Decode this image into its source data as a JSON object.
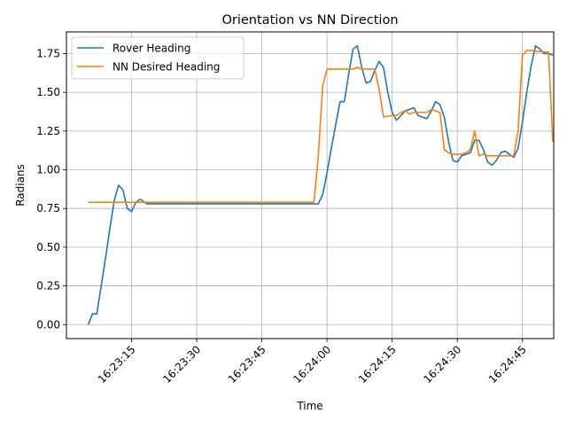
{
  "chart_data": {
    "type": "line",
    "title": "Orientation vs NN Direction",
    "xlabel": "Time",
    "ylabel": "Radians",
    "x_ticks": [
      "16:23:15",
      "16:23:30",
      "16:23:45",
      "16:24:00",
      "16:24:15",
      "16:24:30",
      "16:24:45"
    ],
    "y_ticks": [
      "0.00",
      "0.25",
      "0.50",
      "0.75",
      "1.00",
      "1.25",
      "1.50",
      "1.75"
    ],
    "xlim": [
      "16:23:00.0",
      "16:24:52.2"
    ],
    "ylim": [
      -0.09,
      1.89
    ],
    "grid": true,
    "legend_position": "upper-left",
    "series": [
      {
        "name": "Rover Heading",
        "color": "#1f77b4",
        "x": [
          "16:23:05.0",
          "16:23:06.0",
          "16:23:07.0",
          "16:23:08.0",
          "16:23:09.0",
          "16:23:10.0",
          "16:23:11.0",
          "16:23:12.0",
          "16:23:13.0",
          "16:23:14.0",
          "16:23:15.0",
          "16:23:16.0",
          "16:23:17.0",
          "16:23:18.5",
          "16:23:25.0",
          "16:23:40.0",
          "16:23:57.0",
          "16:23:58.0",
          "16:23:59.0",
          "16:24:00.0",
          "16:24:01.0",
          "16:24:02.0",
          "16:24:03.0",
          "16:24:04.0",
          "16:24:05.0",
          "16:24:06.0",
          "16:24:07.0",
          "16:24:08.0",
          "16:24:09.0",
          "16:24:10.0",
          "16:24:11.0",
          "16:24:12.0",
          "16:24:13.0",
          "16:24:14.0",
          "16:24:15.0",
          "16:24:16.0",
          "16:24:17.0",
          "16:24:18.0",
          "16:24:19.0",
          "16:24:20.0",
          "16:24:21.0",
          "16:24:22.0",
          "16:24:23.0",
          "16:24:24.0",
          "16:24:25.0",
          "16:24:26.0",
          "16:24:27.0",
          "16:24:28.0",
          "16:24:29.0",
          "16:24:30.0",
          "16:24:31.0",
          "16:24:32.0",
          "16:24:33.0",
          "16:24:34.0",
          "16:24:35.0",
          "16:24:36.0",
          "16:24:37.0",
          "16:24:38.0",
          "16:24:39.0",
          "16:24:40.0",
          "16:24:41.0",
          "16:24:42.0",
          "16:24:43.0",
          "16:24:44.0",
          "16:24:45.0",
          "16:24:46.0",
          "16:24:47.0",
          "16:24:48.0",
          "16:24:49.0",
          "16:24:50.0",
          "16:24:51.0",
          "16:24:52.0"
        ],
        "y": [
          0.0,
          0.07,
          0.07,
          0.25,
          0.43,
          0.62,
          0.8,
          0.9,
          0.87,
          0.75,
          0.73,
          0.79,
          0.81,
          0.78,
          0.78,
          0.78,
          0.78,
          0.78,
          0.84,
          0.98,
          1.14,
          1.29,
          1.44,
          1.44,
          1.62,
          1.78,
          1.8,
          1.66,
          1.56,
          1.57,
          1.64,
          1.7,
          1.66,
          1.5,
          1.37,
          1.32,
          1.35,
          1.38,
          1.39,
          1.4,
          1.35,
          1.34,
          1.33,
          1.38,
          1.44,
          1.42,
          1.34,
          1.18,
          1.06,
          1.05,
          1.09,
          1.1,
          1.11,
          1.19,
          1.19,
          1.13,
          1.05,
          1.03,
          1.06,
          1.11,
          1.12,
          1.1,
          1.08,
          1.14,
          1.31,
          1.5,
          1.67,
          1.8,
          1.78,
          1.75,
          1.75,
          1.74
        ]
      },
      {
        "name": "NN Desired Heading",
        "color": "#ff7f0e",
        "x": [
          "16:23:05.0",
          "16:23:20.0",
          "16:23:40.0",
          "16:23:57.0",
          "16:23:58.0",
          "16:23:59.0",
          "16:24:00.0",
          "16:24:05.0",
          "16:24:06.0",
          "16:24:07.0",
          "16:24:08.0",
          "16:24:11.0",
          "16:24:12.0",
          "16:24:13.0",
          "16:24:15.0",
          "16:24:16.0",
          "16:24:17.0",
          "16:24:18.0",
          "16:24:19.0",
          "16:24:20.0",
          "16:24:21.0",
          "16:24:22.0",
          "16:24:23.0",
          "16:24:24.0",
          "16:24:25.0",
          "16:24:26.0",
          "16:24:27.0",
          "16:24:28.0",
          "16:24:29.0",
          "16:24:30.0",
          "16:24:31.0",
          "16:24:32.0",
          "16:24:33.0",
          "16:24:34.0",
          "16:24:35.0",
          "16:24:36.0",
          "16:24:37.0",
          "16:24:40.0",
          "16:24:43.0",
          "16:24:44.0",
          "16:24:45.0",
          "16:24:46.0",
          "16:24:47.0",
          "16:24:50.0",
          "16:24:51.0",
          "16:24:52.0"
        ],
        "y": [
          0.79,
          0.79,
          0.79,
          0.79,
          1.09,
          1.54,
          1.65,
          1.65,
          1.65,
          1.66,
          1.65,
          1.65,
          1.52,
          1.34,
          1.35,
          1.35,
          1.37,
          1.38,
          1.36,
          1.37,
          1.37,
          1.37,
          1.37,
          1.39,
          1.38,
          1.37,
          1.13,
          1.11,
          1.1,
          1.1,
          1.1,
          1.11,
          1.13,
          1.25,
          1.09,
          1.1,
          1.09,
          1.09,
          1.09,
          1.25,
          1.74,
          1.77,
          1.77,
          1.76,
          1.76,
          1.18
        ]
      }
    ]
  }
}
